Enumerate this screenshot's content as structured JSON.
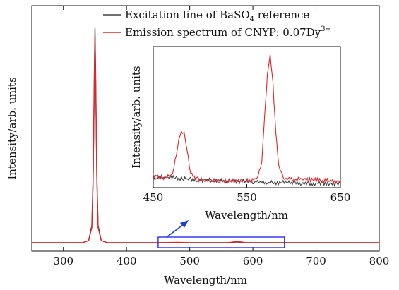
{
  "chart_data": [
    {
      "id": "main",
      "type": "line",
      "xlabel": "Wavelength/nm",
      "ylabel": "Intensity/arb. units",
      "xlim": [
        250,
        800
      ],
      "xticks": [
        300,
        400,
        500,
        600,
        700,
        800
      ],
      "yticks_shown": false,
      "grid": false,
      "legend_position": "top-right",
      "series": [
        {
          "name": "Excitation line of BaSO",
          "name_subscript": "4",
          "name_suffix": " reference",
          "color": "#404040",
          "x": [
            250,
            330,
            340,
            345,
            347,
            349,
            350,
            351,
            353,
            355,
            360,
            370,
            450,
            500,
            550,
            600,
            650,
            700,
            800
          ],
          "y": [
            0.0,
            0.0,
            0.01,
            0.08,
            0.3,
            0.8,
            1.0,
            0.82,
            0.32,
            0.08,
            0.01,
            0.0,
            0.0,
            0.0,
            0.0,
            0.0,
            0.0,
            0.0,
            0.0
          ]
        },
        {
          "name": "Emission spectrum of CNYP: 0.07Dy",
          "name_superscript": "3+",
          "color": "#e0262b",
          "x": [
            250,
            330,
            340,
            345,
            347,
            349,
            350,
            351,
            353,
            355,
            360,
            370,
            450,
            480,
            500,
            560,
            575,
            590,
            650,
            700,
            800
          ],
          "y": [
            0.0,
            0.0,
            0.01,
            0.07,
            0.28,
            0.76,
            0.96,
            0.79,
            0.3,
            0.07,
            0.01,
            0.0,
            0.0,
            0.002,
            0.0,
            0.0,
            0.006,
            0.0,
            0.0,
            0.0,
            0.0
          ]
        }
      ],
      "highlight_box": {
        "x_range": [
          450,
          650
        ],
        "color": "#1a1aff"
      },
      "arrow_color": "#1a3fd8"
    },
    {
      "id": "inset",
      "type": "line",
      "xlabel": "Wavelength/nm",
      "ylabel": "Intensity/arb. units",
      "xlim": [
        450,
        650
      ],
      "xticks": [
        450,
        550,
        650
      ],
      "yticks_shown": false,
      "grid": false,
      "series": [
        {
          "name": "Excitation line of BaSO4 reference",
          "color": "#404040",
          "x": [
            450,
            460,
            470,
            480,
            490,
            500,
            510,
            520,
            530,
            540,
            550,
            560,
            570,
            580,
            590,
            600,
            610,
            620,
            630,
            640,
            650
          ],
          "y": [
            0.06,
            0.06,
            0.055,
            0.05,
            0.045,
            0.04,
            0.035,
            0.032,
            0.03,
            0.028,
            0.025,
            0.022,
            0.02,
            0.018,
            0.016,
            0.015,
            0.014,
            0.012,
            0.011,
            0.01,
            0.01
          ]
        },
        {
          "name": "Emission spectrum of CNYP: 0.07Dy3+",
          "color": "#e0262b",
          "x": [
            450,
            460,
            468,
            472,
            476,
            480,
            483,
            486,
            490,
            495,
            500,
            510,
            520,
            540,
            555,
            562,
            566,
            569,
            572,
            575,
            578,
            581,
            584,
            588,
            592,
            600,
            610,
            630,
            650
          ],
          "y": [
            0.06,
            0.055,
            0.07,
            0.12,
            0.3,
            0.42,
            0.4,
            0.26,
            0.1,
            0.05,
            0.04,
            0.035,
            0.03,
            0.03,
            0.035,
            0.06,
            0.18,
            0.55,
            0.85,
            1.0,
            0.78,
            0.42,
            0.16,
            0.07,
            0.05,
            0.045,
            0.04,
            0.035,
            0.03
          ]
        }
      ]
    }
  ]
}
